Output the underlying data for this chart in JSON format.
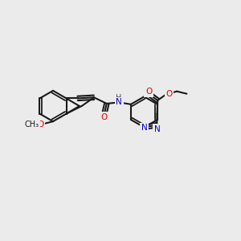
{
  "bg_color": "#ebebeb",
  "bond_color": "#1a1a1a",
  "bond_lw": 1.5,
  "atom_colors": {
    "O": "#e60000",
    "N": "#0000cc",
    "C": "#1a1a1a",
    "H": "#555555"
  },
  "font_size": 7.5,
  "fig_size": [
    3.0,
    3.0
  ],
  "dpi": 100
}
